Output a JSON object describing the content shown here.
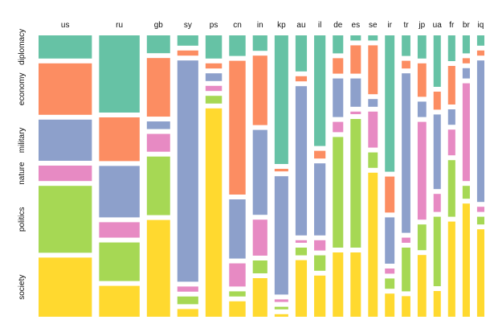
{
  "chart_data": {
    "type": "mosaic",
    "title": "",
    "x_categories": [
      "us",
      "ru",
      "gb",
      "sy",
      "ps",
      "cn",
      "in",
      "kp",
      "au",
      "il",
      "de",
      "es",
      "se",
      "ir",
      "tr",
      "jp",
      "ua",
      "fr",
      "br",
      "iq"
    ],
    "y_categories": [
      "diplomacy",
      "economy",
      "military",
      "nature",
      "politics",
      "society"
    ],
    "colors": {
      "diplomacy": "#66c2a5",
      "economy": "#fc8d62",
      "military": "#8da0cb",
      "nature": "#e78ac3",
      "politics": "#a6d854",
      "society": "#ffd92f"
    },
    "column_shares": [
      0.117,
      0.089,
      0.051,
      0.046,
      0.036,
      0.036,
      0.032,
      0.03,
      0.025,
      0.025,
      0.023,
      0.023,
      0.021,
      0.021,
      0.019,
      0.019,
      0.016,
      0.016,
      0.016,
      0.016
    ],
    "proportions": {
      "us": [
        0.09,
        0.2,
        0.16,
        0.06,
        0.26,
        0.23
      ],
      "ru": [
        0.3,
        0.17,
        0.2,
        0.06,
        0.15,
        0.12
      ],
      "gb": [
        0.07,
        0.23,
        0.03,
        0.07,
        0.23,
        0.38
      ],
      "sy": [
        0.04,
        0.02,
        0.86,
        0.02,
        0.03,
        0.03
      ],
      "ps": [
        0.09,
        0.02,
        0.03,
        0.02,
        0.03,
        0.81
      ],
      "cn": [
        0.08,
        0.52,
        0.23,
        0.09,
        0.02,
        0.06
      ],
      "in": [
        0.06,
        0.27,
        0.33,
        0.14,
        0.05,
        0.15
      ],
      "kp": [
        0.5,
        0.01,
        0.46,
        0.01,
        0.01,
        0.01
      ],
      "au": [
        0.14,
        0.02,
        0.58,
        0.01,
        0.03,
        0.22
      ],
      "il": [
        0.43,
        0.03,
        0.28,
        0.04,
        0.06,
        0.16
      ],
      "de": [
        0.07,
        0.06,
        0.15,
        0.04,
        0.43,
        0.25
      ],
      "es": [
        0.02,
        0.11,
        0.11,
        0.01,
        0.5,
        0.25
      ],
      "se": [
        0.02,
        0.19,
        0.03,
        0.14,
        0.06,
        0.56
      ],
      "ir": [
        0.53,
        0.14,
        0.18,
        0.02,
        0.04,
        0.09
      ],
      "tr": [
        0.08,
        0.03,
        0.62,
        0.02,
        0.17,
        0.08
      ],
      "jp": [
        0.09,
        0.13,
        0.06,
        0.38,
        0.1,
        0.24
      ],
      "ua": [
        0.2,
        0.07,
        0.29,
        0.07,
        0.27,
        0.1
      ],
      "fr": [
        0.1,
        0.15,
        0.06,
        0.1,
        0.22,
        0.37
      ],
      "br": [
        0.07,
        0.02,
        0.04,
        0.38,
        0.05,
        0.44
      ],
      "iq": [
        0.04,
        0.02,
        0.55,
        0.02,
        0.03,
        0.34
      ]
    },
    "legend": "none",
    "grid": false
  }
}
